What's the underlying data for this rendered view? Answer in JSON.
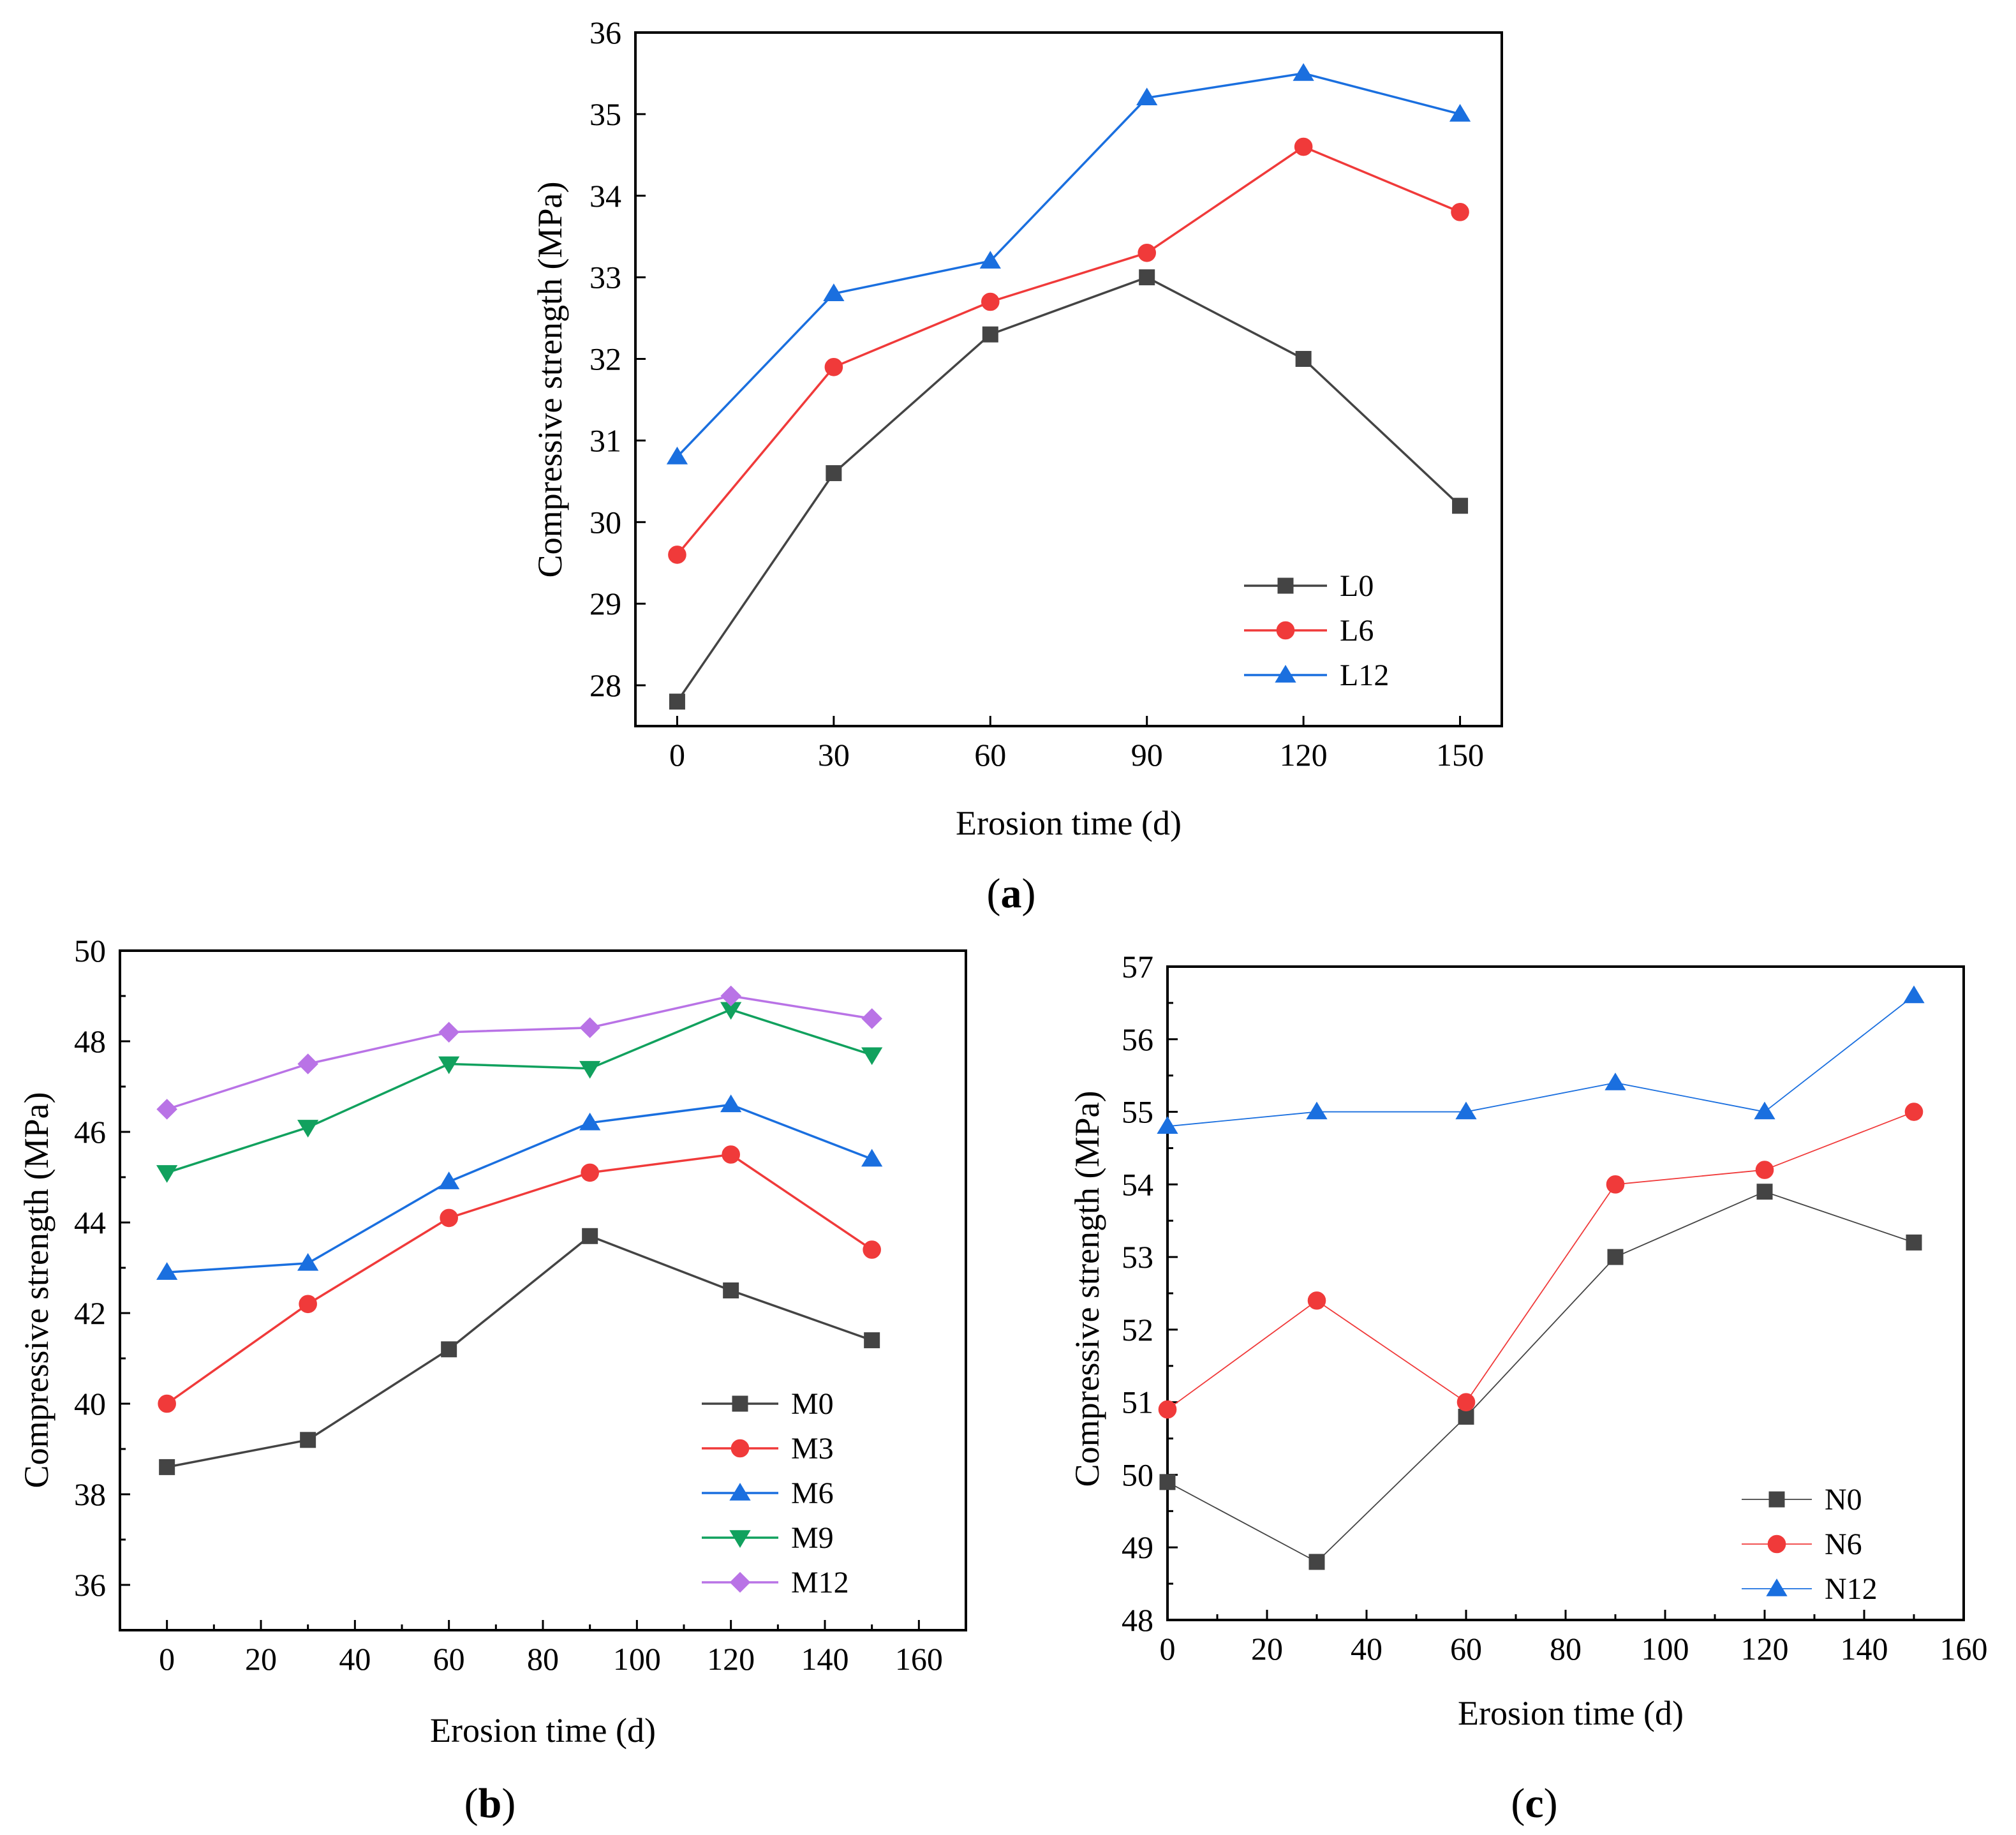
{
  "figure": {
    "panel_labels": [
      {
        "open": "(",
        "letter": "a",
        "close": ")"
      },
      {
        "open": "(",
        "letter": "b",
        "close": ")"
      },
      {
        "open": "(",
        "letter": "c",
        "close": ")"
      }
    ]
  },
  "chart_data": [
    {
      "type": "line",
      "panel": "a",
      "title": "",
      "xlabel": "Erosion time (d)",
      "ylabel": "Compressive strength (MPa)",
      "xlim": [
        -8,
        158
      ],
      "ylim": [
        27.5,
        36
      ],
      "xticks": [
        0,
        30,
        60,
        90,
        120,
        150
      ],
      "yticks": [
        28,
        29,
        30,
        31,
        32,
        33,
        34,
        35,
        36
      ],
      "x": [
        0,
        30,
        60,
        90,
        120,
        150
      ],
      "legend_position": "bottom-right",
      "series": [
        {
          "name": "L0",
          "color": "#444444",
          "marker": "square",
          "values": [
            27.8,
            30.6,
            32.3,
            33.0,
            32.0,
            30.2
          ]
        },
        {
          "name": "L6",
          "color": "#f03a3a",
          "marker": "circle",
          "values": [
            29.6,
            31.9,
            32.7,
            33.3,
            34.6,
            33.8
          ]
        },
        {
          "name": "L12",
          "color": "#1a6fdf",
          "marker": "triangle-up",
          "values": [
            30.8,
            32.8,
            33.2,
            35.2,
            35.5,
            35.0
          ]
        }
      ]
    },
    {
      "type": "line",
      "panel": "b",
      "title": "",
      "xlabel": "Erosion time (d)",
      "ylabel": "Compressive strength (MPa)",
      "xlim": [
        -10,
        170
      ],
      "ylim": [
        35,
        50
      ],
      "xticks": [
        0,
        20,
        40,
        60,
        80,
        100,
        120,
        140,
        160
      ],
      "yticks": [
        36,
        38,
        40,
        42,
        44,
        46,
        48,
        50
      ],
      "x": [
        0,
        30,
        60,
        90,
        120,
        150
      ],
      "legend_position": "bottom-right",
      "series": [
        {
          "name": "M0",
          "color": "#444444",
          "marker": "square",
          "values": [
            38.6,
            39.2,
            41.2,
            43.7,
            42.5,
            41.4
          ]
        },
        {
          "name": "M3",
          "color": "#f03a3a",
          "marker": "circle",
          "values": [
            40.0,
            42.2,
            44.1,
            45.1,
            45.5,
            43.4
          ]
        },
        {
          "name": "M6",
          "color": "#1a6fdf",
          "marker": "triangle-up",
          "values": [
            42.9,
            43.1,
            44.9,
            46.2,
            46.6,
            45.4
          ]
        },
        {
          "name": "M9",
          "color": "#11a15e",
          "marker": "triangle-down",
          "values": [
            45.1,
            46.1,
            47.5,
            47.4,
            48.7,
            47.7
          ]
        },
        {
          "name": "M12",
          "color": "#b973e6",
          "marker": "diamond",
          "values": [
            46.5,
            47.5,
            48.2,
            48.3,
            49.0,
            48.5
          ]
        }
      ]
    },
    {
      "type": "line",
      "panel": "c",
      "title": "",
      "xlabel": "Erosion time (d)",
      "ylabel": "Compressive strength (MPa)",
      "xlim": [
        0,
        160
      ],
      "ylim": [
        48,
        57
      ],
      "xticks": [
        0,
        20,
        40,
        60,
        80,
        100,
        120,
        140,
        160
      ],
      "yticks": [
        48,
        49,
        50,
        51,
        52,
        53,
        54,
        55,
        56,
        57
      ],
      "x": [
        0,
        30,
        60,
        90,
        120,
        150
      ],
      "legend_position": "bottom-right",
      "series": [
        {
          "name": "N0",
          "color": "#444444",
          "marker": "square",
          "values": [
            49.9,
            48.8,
            50.8,
            53.0,
            53.9,
            53.2
          ]
        },
        {
          "name": "N6",
          "color": "#f03a3a",
          "marker": "circle",
          "values": [
            50.9,
            52.4,
            51.0,
            54.0,
            54.2,
            55.0
          ]
        },
        {
          "name": "N12",
          "color": "#1a6fdf",
          "marker": "triangle-up",
          "values": [
            54.8,
            55.0,
            55.0,
            55.4,
            55.0,
            56.6
          ]
        }
      ]
    }
  ]
}
